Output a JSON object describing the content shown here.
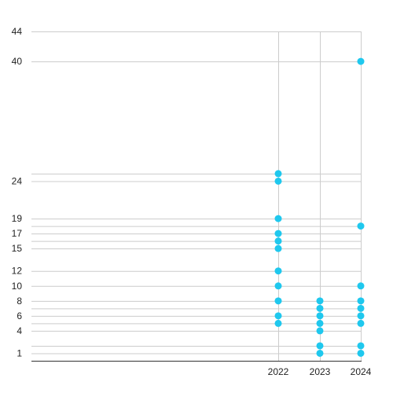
{
  "chart_data": {
    "type": "scatter",
    "title": "",
    "xlabel": "",
    "ylabel": "",
    "x_categories": [
      "2022",
      "2023",
      "2024"
    ],
    "y_ticks": [
      1,
      4,
      6,
      8,
      10,
      12,
      15,
      17,
      19,
      24,
      40,
      44
    ],
    "ylim": [
      0,
      44
    ],
    "grid": "both",
    "series": [
      {
        "values": [
          {
            "x": "2022",
            "y": 5
          },
          {
            "x": "2022",
            "y": 6
          },
          {
            "x": "2022",
            "y": 8
          },
          {
            "x": "2022",
            "y": 10
          },
          {
            "x": "2022",
            "y": 12
          },
          {
            "x": "2022",
            "y": 15
          },
          {
            "x": "2022",
            "y": 16
          },
          {
            "x": "2022",
            "y": 17
          },
          {
            "x": "2022",
            "y": 19
          },
          {
            "x": "2022",
            "y": 24
          },
          {
            "x": "2022",
            "y": 25
          },
          {
            "x": "2023",
            "y": 1
          },
          {
            "x": "2023",
            "y": 2
          },
          {
            "x": "2023",
            "y": 4
          },
          {
            "x": "2023",
            "y": 5
          },
          {
            "x": "2023",
            "y": 6
          },
          {
            "x": "2023",
            "y": 7
          },
          {
            "x": "2023",
            "y": 8
          },
          {
            "x": "2024",
            "y": 1
          },
          {
            "x": "2024",
            "y": 2
          },
          {
            "x": "2024",
            "y": 5
          },
          {
            "x": "2024",
            "y": 6
          },
          {
            "x": "2024",
            "y": 7
          },
          {
            "x": "2024",
            "y": 8
          },
          {
            "x": "2024",
            "y": 10
          },
          {
            "x": "2024",
            "y": 18
          },
          {
            "x": "2024",
            "y": 40
          }
        ]
      }
    ],
    "colors": {
      "point": "#1fc8ee",
      "grid": "#cccccc",
      "axis": "#333333"
    }
  }
}
